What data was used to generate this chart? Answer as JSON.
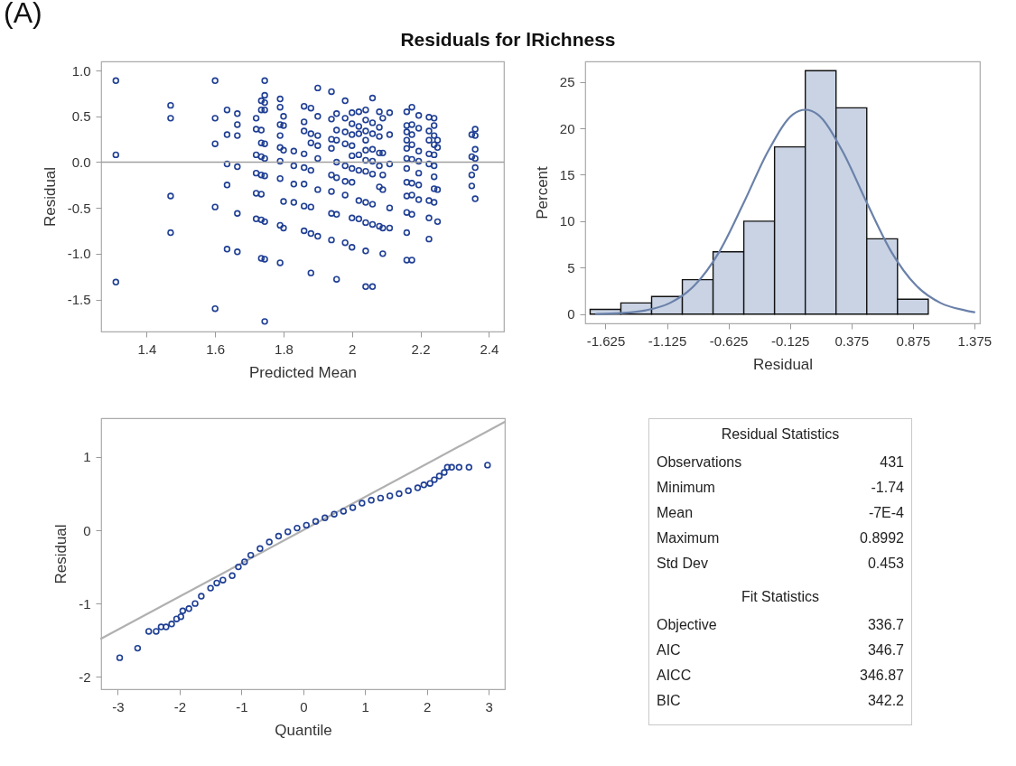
{
  "chart_data": [
    {
      "type": "scatter",
      "title": "Residuals for lRichness",
      "annotations": [
        "(A)"
      ],
      "xlabel": "Predicted Mean",
      "ylabel": "Residual",
      "marker": "circle",
      "color": "#1f3f94",
      "xlim": [
        1.267,
        2.444
      ],
      "xticks": [
        1.4,
        1.6,
        1.8,
        2.0,
        2.2,
        2.4
      ],
      "ylim": [
        -1.85,
        1.1
      ],
      "yticks": [
        {
          "value": 1,
          "label": "1.0"
        },
        0.5,
        {
          "value": 0,
          "label": "0.0"
        },
        -0.5,
        {
          "value": -1,
          "label": "-1.0"
        },
        -1.5
      ],
      "ref_lines": [
        {
          "axis": "y",
          "value": 0,
          "color": "#a0a0a0"
        }
      ],
      "x": [
        1.31,
        1.31,
        1.31,
        1.47,
        1.47,
        1.47,
        1.47,
        1.6,
        1.6,
        1.6,
        1.6,
        1.6,
        1.635,
        1.635,
        1.635,
        1.635,
        1.635,
        1.665,
        1.665,
        1.665,
        1.665,
        1.665,
        1.665,
        1.72,
        1.72,
        1.72,
        1.72,
        1.72,
        1.72,
        1.735,
        1.735,
        1.735,
        1.735,
        1.735,
        1.735,
        1.735,
        1.735,
        1.735,
        1.745,
        1.745,
        1.745,
        1.745,
        1.745,
        1.745,
        1.745,
        1.745,
        1.745,
        1.745,
        1.79,
        1.79,
        1.79,
        1.79,
        1.79,
        1.79,
        1.79,
        1.79,
        1.79,
        1.8,
        1.8,
        1.8,
        1.8,
        1.8,
        1.83,
        1.83,
        1.83,
        1.83,
        1.86,
        1.86,
        1.86,
        1.86,
        1.86,
        1.86,
        1.86,
        1.86,
        1.88,
        1.88,
        1.88,
        1.88,
        1.88,
        1.88,
        1.88,
        1.9,
        1.9,
        1.9,
        1.9,
        1.9,
        1.9,
        1.9,
        1.94,
        1.94,
        1.94,
        1.94,
        1.94,
        1.94,
        1.94,
        1.94,
        1.955,
        1.955,
        1.955,
        1.955,
        1.955,
        1.955,
        1.955,
        1.98,
        1.98,
        1.98,
        1.98,
        1.98,
        1.98,
        1.98,
        1.98,
        2.0,
        2.0,
        2.0,
        2.0,
        2.0,
        2.0,
        2.0,
        2.0,
        2.0,
        2.02,
        2.02,
        2.02,
        2.02,
        2.02,
        2.02,
        2.02,
        2.04,
        2.04,
        2.04,
        2.04,
        2.04,
        2.04,
        2.04,
        2.04,
        2.04,
        2.04,
        2.04,
        2.06,
        2.06,
        2.06,
        2.06,
        2.06,
        2.06,
        2.06,
        2.06,
        2.06,
        2.08,
        2.08,
        2.08,
        2.08,
        2.08,
        2.08,
        2.08,
        2.09,
        2.09,
        2.09,
        2.09,
        2.09,
        2.09,
        2.11,
        2.11,
        2.11,
        2.11,
        2.11,
        2.16,
        2.16,
        2.16,
        2.16,
        2.16,
        2.16,
        2.16,
        2.16,
        2.16,
        2.16,
        2.16,
        2.16,
        2.175,
        2.175,
        2.175,
        2.175,
        2.175,
        2.175,
        2.175,
        2.175,
        2.175,
        2.195,
        2.195,
        2.195,
        2.195,
        2.195,
        2.195,
        2.195,
        2.225,
        2.225,
        2.225,
        2.225,
        2.225,
        2.225,
        2.225,
        2.225,
        2.24,
        2.24,
        2.24,
        2.24,
        2.24,
        2.24,
        2.24,
        2.24,
        2.24,
        2.25,
        2.25,
        2.25,
        2.25,
        2.35,
        2.35,
        2.35,
        2.35,
        2.36,
        2.36,
        2.36,
        2.36,
        2.36,
        2.36
      ],
      "values": [
        0.89,
        0.08,
        -1.31,
        0.62,
        0.48,
        -0.37,
        -0.77,
        0.89,
        0.48,
        0.2,
        -0.49,
        -1.6,
        0.57,
        0.3,
        -0.02,
        -0.25,
        -0.95,
        0.53,
        0.41,
        0.29,
        -0.05,
        -0.56,
        -0.98,
        0.48,
        0.36,
        0.08,
        -0.12,
        -0.34,
        -0.62,
        0.67,
        0.57,
        0.35,
        0.21,
        0.06,
        -0.14,
        -0.35,
        -0.63,
        -1.05,
        0.89,
        0.73,
        0.65,
        0.57,
        0.2,
        0.04,
        -0.15,
        -0.65,
        -1.06,
        -1.74,
        0.69,
        0.6,
        0.41,
        0.29,
        0.16,
        0.01,
        -0.18,
        -0.69,
        -1.1,
        0.5,
        0.4,
        0.13,
        -0.43,
        -0.72,
        0.12,
        -0.04,
        -0.24,
        -0.44,
        0.61,
        0.44,
        0.34,
        0.09,
        -0.06,
        -0.24,
        -0.48,
        -0.75,
        0.59,
        0.31,
        0.21,
        -0.09,
        -0.49,
        -0.78,
        -1.21,
        0.81,
        0.5,
        0.29,
        0.18,
        0.04,
        -0.3,
        -0.81,
        0.77,
        0.47,
        0.25,
        0.15,
        -0.14,
        -0.32,
        -0.56,
        -0.85,
        0.53,
        0.35,
        0.24,
        0,
        -0.17,
        -0.57,
        -1.28,
        0.67,
        0.48,
        0.33,
        0.2,
        -0.04,
        -0.21,
        -0.36,
        -0.88,
        0.54,
        0.42,
        0.3,
        0.18,
        0.07,
        -0.07,
        -0.22,
        -0.61,
        -0.93,
        0.55,
        0.39,
        0.31,
        0.08,
        -0.09,
        -0.42,
        -0.62,
        0.57,
        0.46,
        0.34,
        0.24,
        0.13,
        0.02,
        -0.1,
        -0.44,
        -0.66,
        -0.97,
        -1.36,
        0.7,
        0.43,
        0.31,
        0.14,
        0.01,
        -0.13,
        -0.46,
        -0.68,
        -1.36,
        0.55,
        0.38,
        0.28,
        0.1,
        -0.04,
        -0.27,
        -0.7,
        0.48,
        0.1,
        -0.14,
        -0.3,
        -0.72,
        -1.0,
        0.54,
        0.3,
        -0.02,
        -0.5,
        -0.72,
        0.55,
        0.4,
        0.33,
        0.24,
        0.15,
        0.04,
        -0.07,
        -0.22,
        -0.37,
        -0.55,
        -0.77,
        -1.07,
        0.6,
        0.41,
        0.3,
        0.19,
        0.03,
        -0.23,
        -0.36,
        -0.57,
        -1.07,
        0.51,
        0.37,
        0.12,
        0.01,
        -0.12,
        -0.25,
        -0.41,
        0.49,
        0.34,
        0.24,
        0.09,
        -0.02,
        -0.42,
        -0.61,
        -0.84,
        0.48,
        0.4,
        0.29,
        0.19,
        0.08,
        -0.04,
        -0.16,
        -0.29,
        -0.44,
        0.24,
        0.16,
        -0.3,
        -0.65,
        0.3,
        0.06,
        -0.14,
        -0.26,
        0.36,
        0.29,
        0.14,
        0.04,
        -0.06,
        -0.4
      ]
    },
    {
      "type": "histogram",
      "xlabel": "Residual",
      "ylabel": "Percent",
      "color": "#c9d3e4",
      "bins": [
        -1.75,
        -1.5,
        -1.25,
        -1.0,
        -0.75,
        -0.5,
        -0.25,
        0,
        0.25,
        0.5,
        0.75,
        1.0
      ],
      "values": [
        0.5,
        1.2,
        1.9,
        3.7,
        6.7,
        10,
        18,
        26.2,
        22.2,
        8.1,
        1.6
      ],
      "xlim": [
        -1.79,
        1.42
      ],
      "xticks": [
        -1.625,
        -1.125,
        -0.625,
        -0.125,
        0.375,
        0.875,
        1.375
      ],
      "ylim": [
        -1,
        27.2
      ],
      "yticks": [
        0,
        5,
        10,
        15,
        20,
        25
      ],
      "series": [
        {
          "type": "line",
          "color": "#6a81a9",
          "x": [
            -1.7,
            -1.5,
            -1.3,
            -1.1,
            -0.9,
            -0.7,
            -0.5,
            -0.3,
            -0.1,
            0,
            0.1,
            0.3,
            0.5,
            0.7,
            0.9,
            1.1,
            1.3,
            1.375
          ],
          "values": [
            0,
            0.1,
            0.4,
            1.2,
            3.1,
            6.7,
            12.0,
            17.6,
            21.5,
            22.0,
            21.5,
            17.6,
            12.0,
            6.7,
            3.1,
            1.2,
            0.4,
            0.2
          ]
        }
      ]
    },
    {
      "type": "scatter",
      "xlabel": "Quantile",
      "ylabel": "Residual",
      "xlim": [
        -3.27,
        3.26
      ],
      "xticks": [
        -3,
        -2,
        -1,
        0,
        1,
        2,
        3
      ],
      "ylim": [
        -2.17,
        1.53
      ],
      "yticks": [
        -2,
        -1,
        0,
        1
      ],
      "series": [
        {
          "type": "line",
          "color": "#b0b0b0",
          "x": [
            -3.27,
            3.26
          ],
          "values": [
            -1.48,
            1.48
          ]
        },
        {
          "type": "scatter",
          "marker": "circle",
          "color": "#1f3f94",
          "x": [
            -2.97,
            -2.68,
            -2.5,
            -2.38,
            -2.3,
            -2.22,
            -2.13,
            -2.05,
            -1.98,
            -1.95,
            -1.85,
            -1.75,
            -1.65,
            -1.5,
            -1.4,
            -1.3,
            -1.15,
            -1.05,
            -0.95,
            -0.85,
            -0.7,
            -0.55,
            -0.4,
            -0.25,
            -0.1,
            0.05,
            0.2,
            0.35,
            0.5,
            0.65,
            0.8,
            0.95,
            1.1,
            1.25,
            1.4,
            1.55,
            1.7,
            1.85,
            1.95,
            2.05,
            2.12,
            2.2,
            2.28,
            2.33,
            2.4,
            2.52,
            2.68,
            2.98
          ],
          "values": [
            -1.74,
            -1.61,
            -1.38,
            -1.38,
            -1.32,
            -1.32,
            -1.28,
            -1.21,
            -1.18,
            -1.1,
            -1.07,
            -1.0,
            -0.9,
            -0.79,
            -0.72,
            -0.68,
            -0.62,
            -0.5,
            -0.43,
            -0.34,
            -0.25,
            -0.16,
            -0.08,
            -0.02,
            0.03,
            0.07,
            0.12,
            0.17,
            0.22,
            0.26,
            0.31,
            0.37,
            0.41,
            0.44,
            0.47,
            0.5,
            0.54,
            0.58,
            0.62,
            0.64,
            0.69,
            0.74,
            0.79,
            0.86,
            0.86,
            0.86,
            0.86,
            0.89
          ]
        }
      ]
    },
    {
      "type": "other",
      "title": "Residual Statistics",
      "categories": [
        "Observations",
        "Minimum",
        "Mean",
        "Maximum",
        "Std Dev"
      ],
      "value_labels": [
        "431",
        "-1.74",
        "-7E-4",
        "0.8992",
        "0.453"
      ]
    },
    {
      "type": "other",
      "title": "Fit Statistics",
      "categories": [
        "Objective",
        "AIC",
        "AICC",
        "BIC"
      ],
      "value_labels": [
        "336.7",
        "346.7",
        "346.87",
        "342.2"
      ]
    }
  ]
}
